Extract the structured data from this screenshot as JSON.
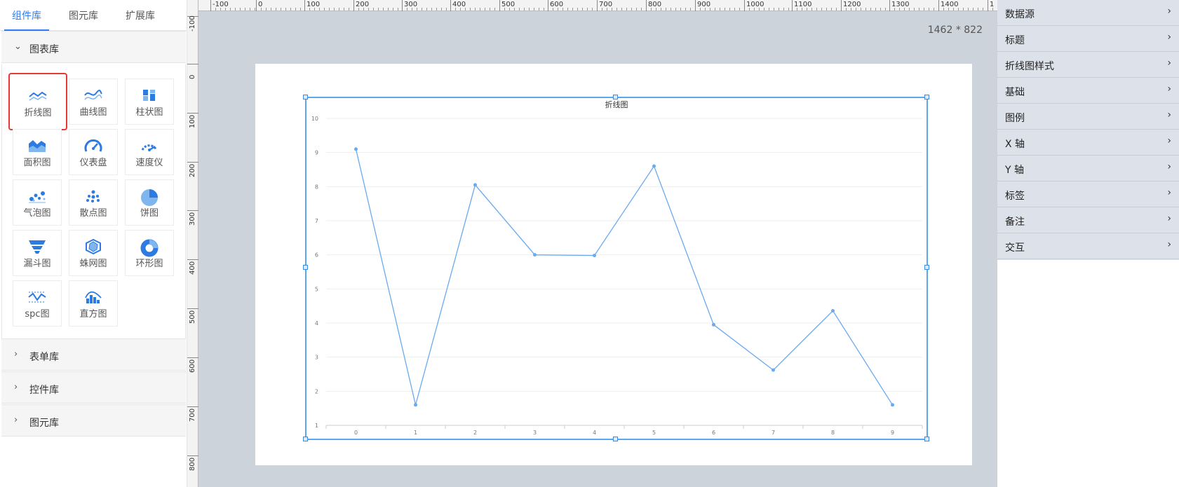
{
  "tabs": [
    "组件库",
    "图元库",
    "扩展库"
  ],
  "sections": {
    "chart_lib": "图表库",
    "form_lib": "表单库",
    "control_lib": "控件库",
    "element_lib": "图元库"
  },
  "chart_tiles": [
    {
      "label": "折线图",
      "icon": "line-chart-icon"
    },
    {
      "label": "曲线图",
      "icon": "curve-chart-icon"
    },
    {
      "label": "柱状图",
      "icon": "bar-chart-icon"
    },
    {
      "label": "面积图",
      "icon": "area-chart-icon"
    },
    {
      "label": "仪表盘",
      "icon": "gauge-icon"
    },
    {
      "label": "速度仪",
      "icon": "speedometer-icon"
    },
    {
      "label": "气泡图",
      "icon": "bubble-chart-icon"
    },
    {
      "label": "散点图",
      "icon": "scatter-chart-icon"
    },
    {
      "label": "饼图",
      "icon": "pie-chart-icon"
    },
    {
      "label": "漏斗图",
      "icon": "funnel-chart-icon"
    },
    {
      "label": "蛛网图",
      "icon": "radar-chart-icon"
    },
    {
      "label": "环形图",
      "icon": "donut-chart-icon"
    },
    {
      "label": "spc图",
      "icon": "spc-chart-icon"
    },
    {
      "label": "直方图",
      "icon": "histogram-icon"
    }
  ],
  "canvas": {
    "size_label": "1462 * 822",
    "h_ruler_labels": [
      "-100",
      "0",
      "100",
      "200",
      "300",
      "400",
      "500",
      "600",
      "700",
      "800",
      "900",
      "1000",
      "1100",
      "1200",
      "1300",
      "1400",
      "1"
    ],
    "v_ruler_labels": [
      "-100",
      "0",
      "100",
      "200",
      "300",
      "400",
      "500",
      "600",
      "700",
      "800"
    ]
  },
  "chart_data": {
    "type": "line",
    "title": "折线图",
    "categories": [
      "0",
      "1",
      "2",
      "3",
      "4",
      "5",
      "6",
      "7",
      "8",
      "9"
    ],
    "series": [
      {
        "values": [
          9.1,
          1.6,
          8.05,
          6.0,
          5.98,
          8.6,
          3.95,
          2.62,
          4.36,
          1.6
        ]
      }
    ],
    "yticks": [
      "1",
      "2",
      "3",
      "4",
      "5",
      "6",
      "7",
      "8",
      "9",
      "10"
    ],
    "ylim": [
      1,
      10
    ],
    "grid": true,
    "line_color": "#6aaaf0"
  },
  "properties": [
    "数据源",
    "标题",
    "折线图样式",
    "基础",
    "图例",
    "X 轴",
    "Y 轴",
    "标签",
    "备注",
    "交互"
  ],
  "colors": {
    "accent": "#2f7cf6",
    "selected_border": "#e53935",
    "chart_blue": "#5aa7f2"
  }
}
